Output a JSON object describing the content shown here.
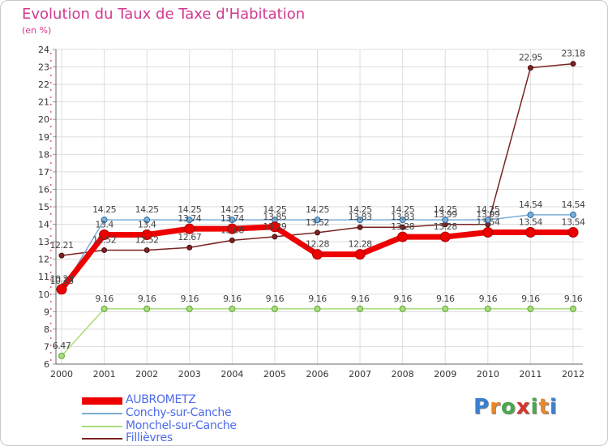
{
  "title": "Evolution du Taux de Taxe d'Habitation",
  "unit_label": "(en %)",
  "logo": {
    "text": "Proxiti",
    "letter_colors": [
      "#3a7fd1",
      "#e8862a",
      "#4aa84a",
      "#d8342f",
      "#4aa84a",
      "#e8862a",
      "#3a7fd1"
    ]
  },
  "chart_data": {
    "type": "line",
    "x": [
      "2000",
      "2001",
      "2002",
      "2003",
      "2004",
      "2005",
      "2006",
      "2007",
      "2008",
      "2009",
      "2010",
      "2011",
      "2012"
    ],
    "ylim": [
      6,
      24
    ],
    "yticks": [
      "6",
      "7",
      "8",
      "9",
      "10",
      "11",
      "12",
      "13",
      "14",
      "15",
      "16",
      "17",
      "18",
      "19",
      "20",
      "21",
      "22",
      "23",
      "24"
    ],
    "grid": true,
    "legend_position": "bottom-left",
    "series": [
      {
        "name": "AUBROMETZ",
        "color": "#ee0000",
        "values": [
          10.28,
          13.4,
          13.4,
          13.74,
          13.74,
          13.85,
          12.28,
          12.28,
          13.28,
          13.28,
          13.54,
          13.54,
          13.54
        ],
        "labels": [
          "10.28",
          "13.4",
          "13.4",
          "13.74",
          "13.74",
          "13.85",
          "12.28",
          "12.28",
          "13.28",
          "13.28",
          "13.54",
          "13.54",
          "13.54"
        ]
      },
      {
        "name": "Conchy-sur-Canche",
        "color": "#7aaed6",
        "values": [
          10.18,
          14.25,
          14.25,
          14.25,
          14.25,
          14.25,
          14.25,
          14.25,
          14.25,
          14.25,
          14.25,
          14.54,
          14.54
        ],
        "labels": [
          "10.18",
          "14.25",
          "14.25",
          "14.25",
          "14.25",
          "14.25",
          "14.25",
          "14.25",
          "14.25",
          "14.25",
          "14.25",
          "14.54",
          "14.54"
        ]
      },
      {
        "name": "Monchel-sur-Canche",
        "color": "#a9dc7a",
        "values": [
          6.47,
          9.16,
          9.16,
          9.16,
          9.16,
          9.16,
          9.16,
          9.16,
          9.16,
          9.16,
          9.16,
          9.16,
          9.16
        ],
        "labels": [
          "6.47",
          "9.16",
          "9.16",
          "9.16",
          "9.16",
          "9.16",
          "9.16",
          "9.16",
          "9.16",
          "9.16",
          "9.16",
          "9.16",
          "9.16"
        ]
      },
      {
        "name": "Fillièvres",
        "color": "#7b2222",
        "values": [
          12.21,
          12.52,
          12.52,
          12.67,
          13.08,
          13.29,
          13.52,
          13.83,
          13.83,
          13.99,
          13.99,
          22.95,
          23.18
        ],
        "labels": [
          "12.21",
          "12.52",
          "12.52",
          "12.67",
          "13.08",
          "13.29",
          "13.52",
          "13.83",
          "13.83",
          "13.99",
          "13.99",
          "22.95",
          "23.18"
        ]
      }
    ]
  }
}
